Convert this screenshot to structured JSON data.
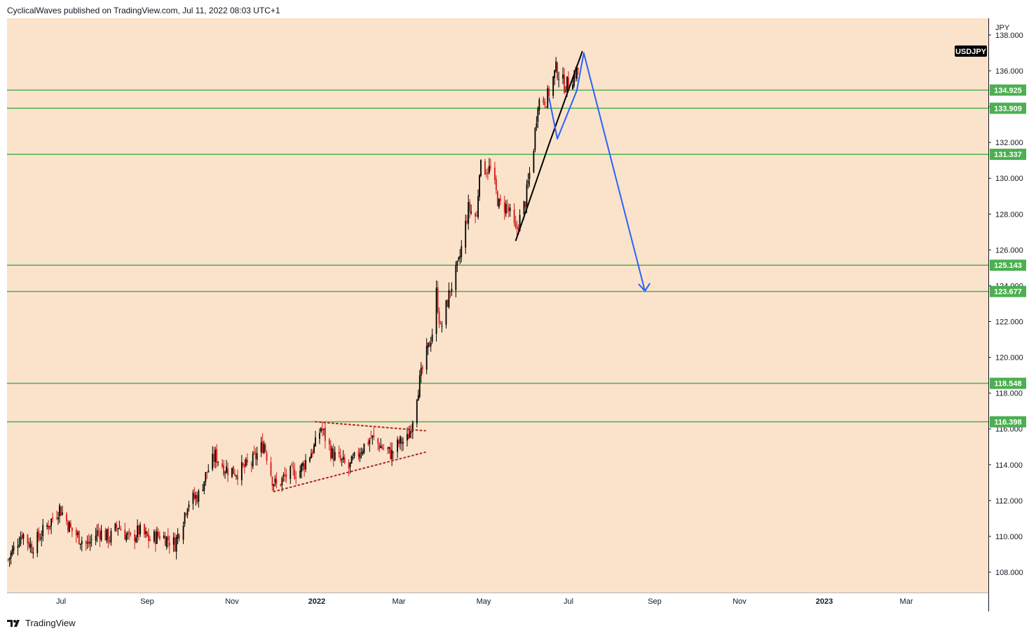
{
  "header": {
    "text": "CyclicalWaves published on TradingView.com, Jul 11, 2022 08:03 UTC+1"
  },
  "footer": {
    "brand": "TradingView",
    "logo_icon": "tradingview-logo-icon"
  },
  "colors": {
    "background": "#fae3ca",
    "up_candle": "#000000",
    "down_candle": "#d11b1b",
    "level_line": "#4caf50",
    "projection": "#2962ff",
    "trendline": "#000000",
    "triangle": "#b22222"
  },
  "chart_data": {
    "type": "candlestick",
    "symbol": "USDJPY",
    "currency": "JPY",
    "ylim": [
      106.6,
      138.5
    ],
    "y_ticks": [
      "108.000",
      "110.000",
      "112.000",
      "114.000",
      "116.000",
      "118.000",
      "120.000",
      "122.000",
      "124.000",
      "126.000",
      "128.000",
      "130.000",
      "132.000",
      "134.000",
      "136.000",
      "138.000"
    ],
    "x_ticks": [
      {
        "label": "Jul",
        "date": "2021-07-01",
        "bold": false
      },
      {
        "label": "Sep",
        "date": "2021-09-01",
        "bold": false
      },
      {
        "label": "Nov",
        "date": "2021-11-01",
        "bold": false
      },
      {
        "label": "2022",
        "date": "2022-01-01",
        "bold": true
      },
      {
        "label": "Mar",
        "date": "2022-03-01",
        "bold": false
      },
      {
        "label": "May",
        "date": "2022-05-01",
        "bold": false
      },
      {
        "label": "Jul",
        "date": "2022-07-01",
        "bold": false
      },
      {
        "label": "Sep",
        "date": "2022-09-01",
        "bold": false
      },
      {
        "label": "Nov",
        "date": "2022-11-01",
        "bold": false
      },
      {
        "label": "2023",
        "date": "2023-01-01",
        "bold": true
      },
      {
        "label": "Mar",
        "date": "2023-03-01",
        "bold": false
      }
    ],
    "levels": [
      "134.925",
      "133.909",
      "131.337",
      "125.143",
      "123.677",
      "118.548",
      "116.398"
    ],
    "price_path": [
      [
        "2021-05-24",
        108.7
      ],
      [
        "2021-06-03",
        110.2
      ],
      [
        "2021-06-10",
        109.4
      ],
      [
        "2021-06-24",
        110.9
      ],
      [
        "2021-06-30",
        111.6
      ],
      [
        "2021-07-08",
        110.4
      ],
      [
        "2021-07-20",
        109.5
      ],
      [
        "2021-07-28",
        110.3
      ],
      [
        "2021-08-05",
        109.9
      ],
      [
        "2021-08-11",
        110.6
      ],
      [
        "2021-08-20",
        109.8
      ],
      [
        "2021-08-26",
        110.3
      ],
      [
        "2021-09-03",
        109.8
      ],
      [
        "2021-09-10",
        110.1
      ],
      [
        "2021-09-21",
        109.6
      ],
      [
        "2021-09-27",
        111.0
      ],
      [
        "2021-09-30",
        111.9
      ],
      [
        "2021-10-08",
        112.3
      ],
      [
        "2021-10-14",
        113.6
      ],
      [
        "2021-10-20",
        114.5
      ],
      [
        "2021-10-27",
        113.8
      ],
      [
        "2021-11-05",
        113.6
      ],
      [
        "2021-11-15",
        114.1
      ],
      [
        "2021-11-24",
        115.2
      ],
      [
        "2021-11-30",
        113.2
      ],
      [
        "2021-12-03",
        112.8
      ],
      [
        "2021-12-10",
        113.4
      ],
      [
        "2021-12-20",
        113.7
      ],
      [
        "2021-12-31",
        115.1
      ],
      [
        "2022-01-04",
        116.1
      ],
      [
        "2022-01-12",
        114.6
      ],
      [
        "2022-01-24",
        113.8
      ],
      [
        "2022-02-02",
        114.9
      ],
      [
        "2022-02-09",
        115.5
      ],
      [
        "2022-02-18",
        114.9
      ],
      [
        "2022-02-24",
        114.6
      ],
      [
        "2022-03-01",
        115.2
      ],
      [
        "2022-03-07",
        115.4
      ],
      [
        "2022-03-10",
        116.2
      ],
      [
        "2022-03-14",
        118.0
      ],
      [
        "2022-03-18",
        119.3
      ],
      [
        "2022-03-25",
        121.4
      ],
      [
        "2022-03-28",
        123.6
      ],
      [
        "2022-03-31",
        121.5
      ],
      [
        "2022-04-07",
        123.8
      ],
      [
        "2022-04-13",
        125.2
      ],
      [
        "2022-04-20",
        128.3
      ],
      [
        "2022-04-26",
        127.8
      ],
      [
        "2022-04-28",
        130.6
      ],
      [
        "2022-05-06",
        130.5
      ],
      [
        "2022-05-12",
        128.5
      ],
      [
        "2022-05-18",
        128.4
      ],
      [
        "2022-05-24",
        127.0
      ],
      [
        "2022-05-31",
        128.7
      ],
      [
        "2022-06-06",
        131.8
      ],
      [
        "2022-06-09",
        134.3
      ],
      [
        "2022-06-15",
        134.4
      ],
      [
        "2022-06-17",
        134.8
      ],
      [
        "2022-06-22",
        136.1
      ],
      [
        "2022-06-28",
        135.2
      ],
      [
        "2022-07-01",
        135.3
      ],
      [
        "2022-07-08",
        136.1
      ]
    ],
    "annotations": {
      "triangle_upper": [
        [
          "2021-12-31",
          116.4
        ],
        [
          "2022-03-20",
          115.9
        ]
      ],
      "triangle_lower": [
        [
          "2021-12-01",
          112.5
        ],
        [
          "2022-03-20",
          114.7
        ]
      ],
      "trend_lower": [
        [
          "2022-05-24",
          126.5
        ],
        [
          "2022-06-17",
          131.9
        ]
      ],
      "trend_upper": [
        [
          "2022-06-17",
          131.9
        ],
        [
          "2022-07-11",
          137.1
        ]
      ],
      "projection_path": [
        [
          "2022-06-17",
          134.5
        ],
        [
          "2022-06-23",
          132.2
        ],
        [
          "2022-07-07",
          134.9
        ],
        [
          "2022-07-12",
          137.0
        ],
        [
          "2022-08-25",
          123.7
        ]
      ]
    }
  }
}
